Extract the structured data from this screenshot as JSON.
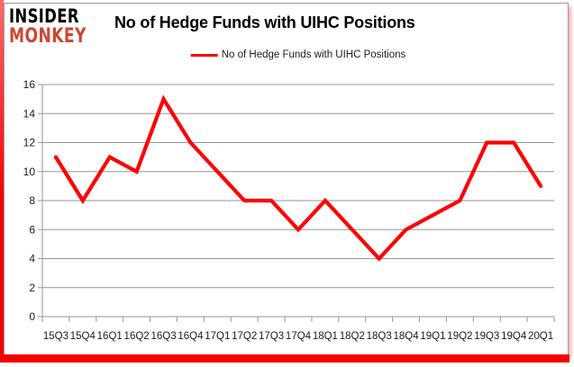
{
  "logo": {
    "line1": "INSIDER",
    "line2": "MONKEY"
  },
  "header": {
    "title": "No of Hedge Funds with UIHC Positions"
  },
  "legend": {
    "label": "No of Hedge Funds with UIHC Positions",
    "line_color": "#ff0000"
  },
  "chart_data": {
    "type": "line",
    "title": "No of Hedge Funds with UIHC Positions",
    "categories": [
      "15Q3",
      "15Q4",
      "16Q1",
      "16Q2",
      "16Q3",
      "16Q4",
      "17Q1",
      "17Q2",
      "17Q3",
      "17Q4",
      "18Q1",
      "18Q2",
      "18Q3",
      "18Q4",
      "19Q1",
      "19Q2",
      "19Q3",
      "19Q4",
      "20Q1"
    ],
    "series": [
      {
        "name": "No of Hedge Funds with UIHC Positions",
        "values": [
          11,
          8,
          11,
          10,
          15,
          12,
          10,
          8,
          8,
          6,
          8,
          6,
          4,
          6,
          7,
          8,
          12,
          12,
          9
        ]
      }
    ],
    "xlabel": "",
    "ylabel": "",
    "ylim": [
      0,
      16
    ],
    "ytick_step": 2,
    "yticks": [
      0,
      2,
      4,
      6,
      8,
      10,
      12,
      14,
      16
    ],
    "grid": true,
    "legend_position": "top",
    "line_color": "#ff0000",
    "gridline_color": "#969696",
    "axis_text_color": "#1a1a1a"
  },
  "colors": {
    "frame_red": "#f40000",
    "logo_red": "#cc4733",
    "border_gray": "#9a9a9a",
    "background": "#ffffff"
  }
}
